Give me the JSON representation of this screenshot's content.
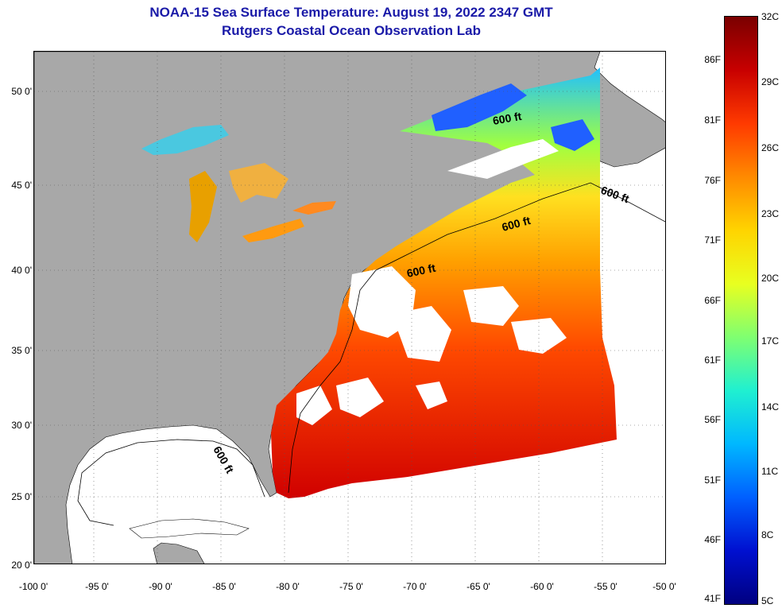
{
  "header": {
    "title": "NOAA-15 Sea Surface Temperature:  August 19, 2022 2347 GMT",
    "subtitle": "Rutgers Coastal Ocean Observation Lab"
  },
  "axes": {
    "lat_labels": [
      "50 0'",
      "45 0'",
      "40 0'",
      "35 0'",
      "30 0'",
      "25 0'",
      "20 0'"
    ],
    "lon_labels": [
      "-100 0'",
      "-95 0'",
      "-90 0'",
      "-85 0'",
      "-80 0'",
      "-75 0'",
      "-70 0'",
      "-65 0'",
      "-60 0'",
      "-55 0'",
      "-50 0'"
    ]
  },
  "contours": {
    "label": "600 ft"
  },
  "colorbar": {
    "fahrenheit": [
      "86F",
      "81F",
      "76F",
      "71F",
      "66F",
      "61F",
      "56F",
      "51F",
      "46F",
      "41F"
    ],
    "celsius": [
      "32C",
      "29C",
      "26C",
      "23C",
      "20C",
      "17C",
      "14C",
      "11C",
      "8C",
      "5C"
    ],
    "colors": [
      "#7a0000",
      "#c80000",
      "#ff3a00",
      "#ff8a00",
      "#ffd400",
      "#e8ff20",
      "#80ff70",
      "#20f0d0",
      "#00b8ff",
      "#0060ff",
      "#0010d0",
      "#000080"
    ]
  },
  "colors": {
    "land": "#a8a8a8",
    "no_data": "#ffffff",
    "title": "#1a1aa8"
  }
}
